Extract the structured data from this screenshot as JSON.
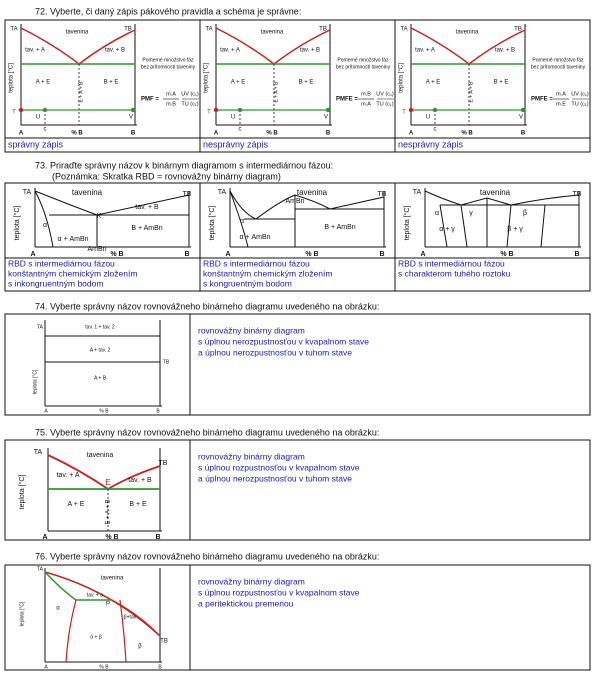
{
  "q72": {
    "title": "72.  Vyberte, či daný zápis pákového pravidla a schéma je správne:",
    "panels": [
      {
        "labels": [
          "TA",
          "TB",
          "tavenina",
          "tav. + A",
          "tav. + B",
          "A + E",
          "B + E",
          "E + A + B",
          "teplota [°C]",
          "A",
          "% B",
          "B",
          "T",
          "U",
          "V",
          "c"
        ],
        "note": [
          "Pomerné množstvo fáz",
          "bez prítomnosti taveniny"
        ],
        "formula": [
          "PMF =",
          "m.A",
          "m.B",
          "UV (c₁)",
          "TU (c₁)"
        ],
        "answer": "správny zápis"
      },
      {
        "labels": [
          "TA",
          "TB",
          "tavenina",
          "tav. + A",
          "tav. + B",
          "A + E",
          "B + E",
          "E + A + B",
          "teplota [°C]",
          "A",
          "% B",
          "B",
          "T",
          "U",
          "V",
          "c"
        ],
        "note": [
          "Pomerné množstvo fáz",
          "bez prítomnosti taveniny"
        ],
        "formula": [
          "PMFE =",
          "m.B",
          "m.A",
          "UV (c₁)",
          "TU (c₁)"
        ],
        "answer": "nesprávny zápis"
      },
      {
        "labels": [
          "TA",
          "TB",
          "tavenina",
          "tav. + A",
          "tav. + B",
          "A + E",
          "B + E",
          "E + A + B",
          "teplota [°C]",
          "A",
          "% B",
          "B",
          "T",
          "U",
          "V",
          "c"
        ],
        "note": [
          "Pomerné množstvo fáz",
          "bez prítomnosti taveniny"
        ],
        "formula": [
          "PMFE =",
          "m.A",
          "m.E",
          "UV (c₁)",
          "TU (c₁)"
        ],
        "answer": "nesprávny zápis"
      }
    ]
  },
  "q73": {
    "title": "73.  Priraďte správny názov k binárnym diagramom s intermediárnou fázou:",
    "note": "(Poznámka: Skratka RBD = rovnovážny binárny diagram)",
    "panels": [
      {
        "labels": [
          "TA",
          "TB",
          "tavenina",
          "tav. + B",
          "K",
          "α",
          "B + AmBn",
          "α + AmBn",
          "AmBn",
          "teplota [°C]",
          "A",
          "% B",
          "B"
        ],
        "answer": [
          "RBD s intermediárnou fázou",
          "konštantným chemickým zložením",
          "s inkongruentným bodom"
        ]
      },
      {
        "labels": [
          "TA",
          "TB",
          "tavenina",
          "AmBn",
          "α",
          "α + AmBn",
          "B + AmBn",
          "teplota [°C]",
          "A",
          "% B",
          "B"
        ],
        "answer": [
          "RBD s intermediárnou fázou",
          "konštantným chemickým zložením",
          "s kongruentným bodom"
        ]
      },
      {
        "labels": [
          "TA",
          "TB",
          "tavenina",
          "α",
          "γ",
          "β",
          "α + γ",
          "β + γ",
          "teplota [°C]",
          "A",
          "% B",
          "B"
        ],
        "answer": [
          "RBD s intermediárnou fázou",
          "s charakterom tuhého roztoku"
        ]
      }
    ]
  },
  "q74": {
    "title": "74.  Vyberte správny názov rovnovážneho binárneho diagramu uvedeného na obrázku:",
    "labels": [
      "TA",
      "TB",
      "tav. 1 + tav. 2",
      "A + tav. 2",
      "A + B",
      "teplota [°C]",
      "A",
      "% B",
      "B"
    ],
    "answer": [
      "rovnovážny binárny diagram",
      "s úplnou nerozpustnosťou v kvapalnom stave",
      "a úplnou nerozpustnosťou v tuhom stave"
    ]
  },
  "q75": {
    "title": "75.  Vyberte správny názov rovnovážneho binárneho diagramu uvedeného na obrázku:",
    "labels": [
      "TA",
      "TB",
      "tavenina",
      "tav. + A",
      "tav. + B",
      "E",
      "A + E",
      "B + E",
      "E + A + B",
      "teplota [°C]",
      "A",
      "% B",
      "B"
    ],
    "answer": [
      "rovnovážny binárny diagram",
      "s úplnou rozpustnosťou v kvapalnom stave",
      "a úplnou nerozpustnosťou v tuhom stave"
    ]
  },
  "q76": {
    "title": "76.  Vyberte správny názov rovnovážneho binárneho diagramu uvedeného na obrázku:",
    "labels": [
      "TA",
      "TB",
      "tavenina",
      "tav. + α",
      "α",
      "P",
      "β+tav",
      "α + β",
      "β",
      "teplota [°C]",
      "A",
      "% B",
      "B"
    ],
    "answer": [
      "rovnovážny binárny diagram",
      "s úplnou rozpustnosťou v kvapalnom stave",
      "a peritektickou premenou"
    ]
  }
}
